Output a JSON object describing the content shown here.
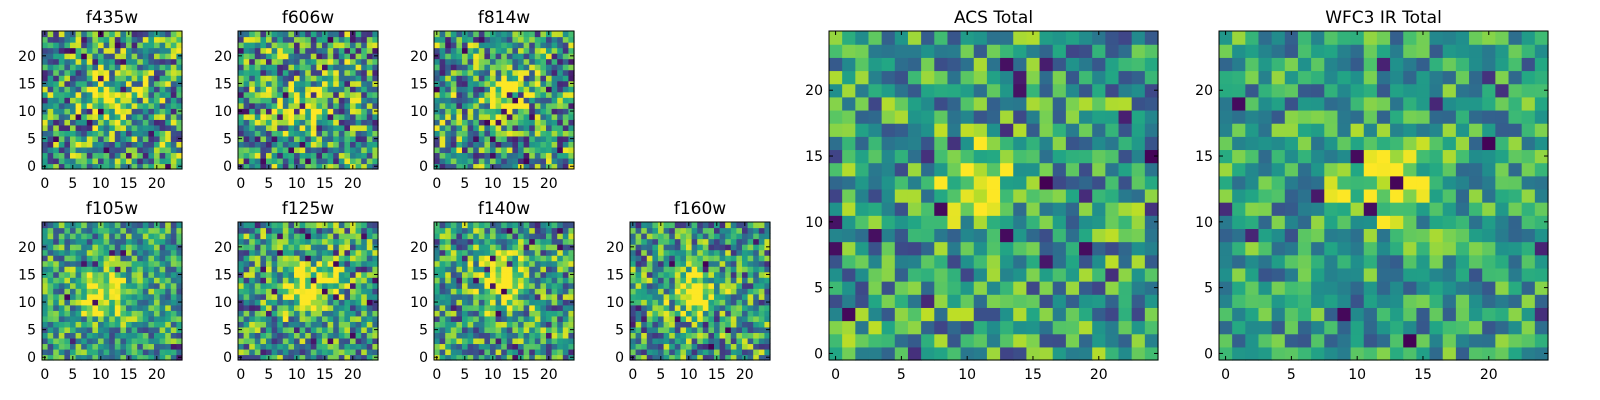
{
  "chart_data": [
    {
      "type": "heatmap",
      "title": "f435w",
      "cmap": "viridis",
      "shape": [
        25,
        25
      ],
      "xlim": [
        0,
        24
      ],
      "ylim": [
        0,
        24
      ],
      "xticks": [
        0,
        5,
        10,
        15,
        20
      ],
      "yticks": [
        0,
        5,
        10,
        15,
        20
      ],
      "center": [
        11,
        12
      ],
      "peak": 0.85,
      "sigma": 3.0,
      "noise": 0.45,
      "dark_frac": 0.03,
      "seed": 11
    },
    {
      "type": "heatmap",
      "title": "f606w",
      "cmap": "viridis",
      "shape": [
        25,
        25
      ],
      "xlim": [
        0,
        24
      ],
      "ylim": [
        0,
        24
      ],
      "xticks": [
        0,
        5,
        10,
        15,
        20
      ],
      "yticks": [
        0,
        5,
        10,
        15,
        20
      ],
      "center": [
        11,
        11
      ],
      "peak": 0.9,
      "sigma": 2.6,
      "noise": 0.45,
      "dark_frac": 0.05,
      "seed": 23
    },
    {
      "type": "heatmap",
      "title": "f814w",
      "cmap": "viridis",
      "shape": [
        25,
        25
      ],
      "xlim": [
        0,
        24
      ],
      "ylim": [
        0,
        24
      ],
      "xticks": [
        0,
        5,
        10,
        15,
        20
      ],
      "yticks": [
        0,
        5,
        10,
        15,
        20
      ],
      "center": [
        12,
        13
      ],
      "peak": 0.95,
      "sigma": 2.4,
      "noise": 0.45,
      "dark_frac": 0.05,
      "seed": 37
    },
    {
      "type": "heatmap",
      "title": "f105w",
      "cmap": "viridis",
      "shape": [
        25,
        25
      ],
      "xlim": [
        0,
        24
      ],
      "ylim": [
        0,
        24
      ],
      "xticks": [
        0,
        5,
        10,
        15,
        20
      ],
      "yticks": [
        0,
        5,
        10,
        15,
        20
      ],
      "center": [
        11,
        12
      ],
      "peak": 0.8,
      "sigma": 3.2,
      "noise": 0.35,
      "dark_frac": 0.02,
      "seed": 41
    },
    {
      "type": "heatmap",
      "title": "f125w",
      "cmap": "viridis",
      "shape": [
        25,
        25
      ],
      "xlim": [
        0,
        24
      ],
      "ylim": [
        0,
        24
      ],
      "xticks": [
        0,
        5,
        10,
        15,
        20
      ],
      "yticks": [
        0,
        5,
        10,
        15,
        20
      ],
      "center": [
        12,
        13
      ],
      "peak": 0.85,
      "sigma": 3.4,
      "noise": 0.4,
      "dark_frac": 0.04,
      "seed": 53
    },
    {
      "type": "heatmap",
      "title": "f140w",
      "cmap": "viridis",
      "shape": [
        25,
        25
      ],
      "xlim": [
        0,
        24
      ],
      "ylim": [
        0,
        24
      ],
      "xticks": [
        0,
        5,
        10,
        15,
        20
      ],
      "yticks": [
        0,
        5,
        10,
        15,
        20
      ],
      "center": [
        12,
        14
      ],
      "peak": 0.85,
      "sigma": 3.3,
      "noise": 0.4,
      "dark_frac": 0.04,
      "seed": 67
    },
    {
      "type": "heatmap",
      "title": "f160w",
      "cmap": "viridis",
      "shape": [
        25,
        25
      ],
      "xlim": [
        0,
        24
      ],
      "ylim": [
        0,
        24
      ],
      "xticks": [
        0,
        5,
        10,
        15,
        20
      ],
      "yticks": [
        0,
        5,
        10,
        15,
        20
      ],
      "center": [
        11,
        12
      ],
      "peak": 1.0,
      "sigma": 2.5,
      "noise": 0.4,
      "dark_frac": 0.05,
      "seed": 79
    },
    {
      "type": "heatmap",
      "title": "ACS Total",
      "cmap": "viridis",
      "shape": [
        25,
        25
      ],
      "xlim": [
        0,
        24
      ],
      "ylim": [
        0,
        24
      ],
      "xticks": [
        0,
        5,
        10,
        15,
        20
      ],
      "yticks": [
        0,
        5,
        10,
        15,
        20
      ],
      "center": [
        11,
        13
      ],
      "peak": 0.8,
      "sigma": 2.3,
      "noise": 0.35,
      "dark_frac": 0.04,
      "seed": 97
    },
    {
      "type": "heatmap",
      "title": "WFC3 IR Total",
      "cmap": "viridis",
      "shape": [
        25,
        25
      ],
      "xlim": [
        0,
        24
      ],
      "ylim": [
        0,
        24
      ],
      "xticks": [
        0,
        5,
        10,
        15,
        20
      ],
      "yticks": [
        0,
        5,
        10,
        15,
        20
      ],
      "center": [
        12,
        13
      ],
      "peak": 0.75,
      "sigma": 2.6,
      "noise": 0.3,
      "dark_frac": 0.03,
      "seed": 113
    }
  ]
}
